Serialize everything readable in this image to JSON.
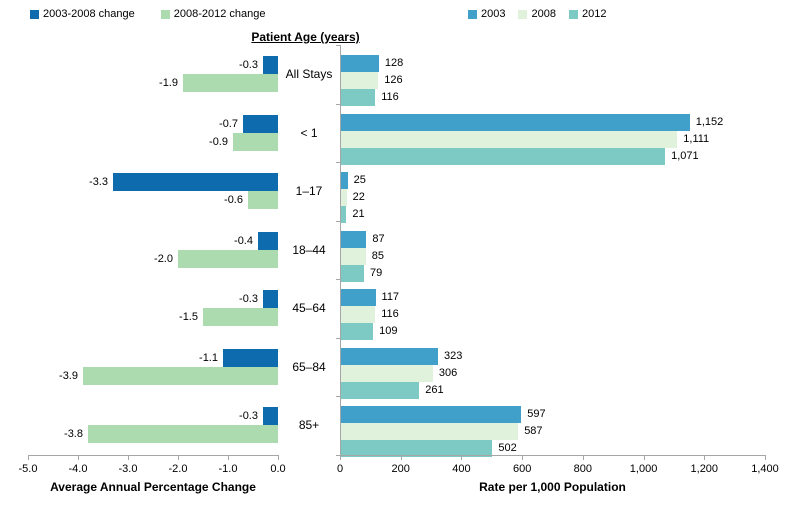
{
  "chart_data": {
    "type": "bar",
    "orientation": "horizontal",
    "title": "Patient Age (years)",
    "categories": [
      "All Stays",
      "< 1",
      "1–17",
      "18–44",
      "45–64",
      "65–84",
      "85+"
    ],
    "left_chart": {
      "type": "bar",
      "xlabel": "Average Annual Percentage Change",
      "xlim": [
        -5.0,
        0.0
      ],
      "tick_labels": [
        "-5.0",
        "-4.0",
        "-3.0",
        "-2.0",
        "-1.0",
        "0.0"
      ],
      "grid": false,
      "legend_position": "top-left",
      "series": [
        {
          "name": "2003-2008 change",
          "color": "#0e6bad",
          "values": [
            -0.3,
            -0.7,
            -3.3,
            -0.4,
            -0.3,
            -1.1,
            -0.3
          ],
          "labels": [
            "-0.3",
            "-0.7",
            "-3.3",
            "-0.4",
            "-0.3",
            "-1.1",
            "-0.3"
          ]
        },
        {
          "name": "2008-2012 change",
          "color": "#abdbae",
          "values": [
            -1.9,
            -0.9,
            -0.6,
            -2.0,
            -1.5,
            -3.9,
            -3.8
          ],
          "labels": [
            "-1.9",
            "-0.9",
            "-0.6",
            "-2.0",
            "-1.5",
            "-3.9",
            "-3.8"
          ]
        }
      ]
    },
    "right_chart": {
      "type": "bar",
      "xlabel": "Rate per 1,000 Population",
      "xlim": [
        0,
        1400
      ],
      "tick_labels": [
        "0",
        "200",
        "400",
        "600",
        "800",
        "1,000",
        "1,200",
        "1,400"
      ],
      "grid": false,
      "legend_position": "top-center",
      "series": [
        {
          "name": "2003",
          "color": "#41a0c9",
          "values": [
            128,
            1152,
            25,
            87,
            117,
            323,
            597
          ],
          "labels": [
            "128",
            "1,152",
            "25",
            "87",
            "117",
            "323",
            "597"
          ]
        },
        {
          "name": "2008",
          "color": "#e0f2db",
          "values": [
            126,
            1111,
            22,
            85,
            116,
            306,
            587
          ],
          "labels": [
            "126",
            "1,111",
            "22",
            "85",
            "116",
            "306",
            "587"
          ]
        },
        {
          "name": "2012",
          "color": "#7ccac3",
          "values": [
            116,
            1071,
            21,
            79,
            109,
            261,
            502
          ],
          "labels": [
            "116",
            "1,071",
            "21",
            "79",
            "109",
            "261",
            "502"
          ]
        }
      ]
    },
    "colors": {
      "axis": "#a6a6a6",
      "text": "#000000"
    }
  }
}
